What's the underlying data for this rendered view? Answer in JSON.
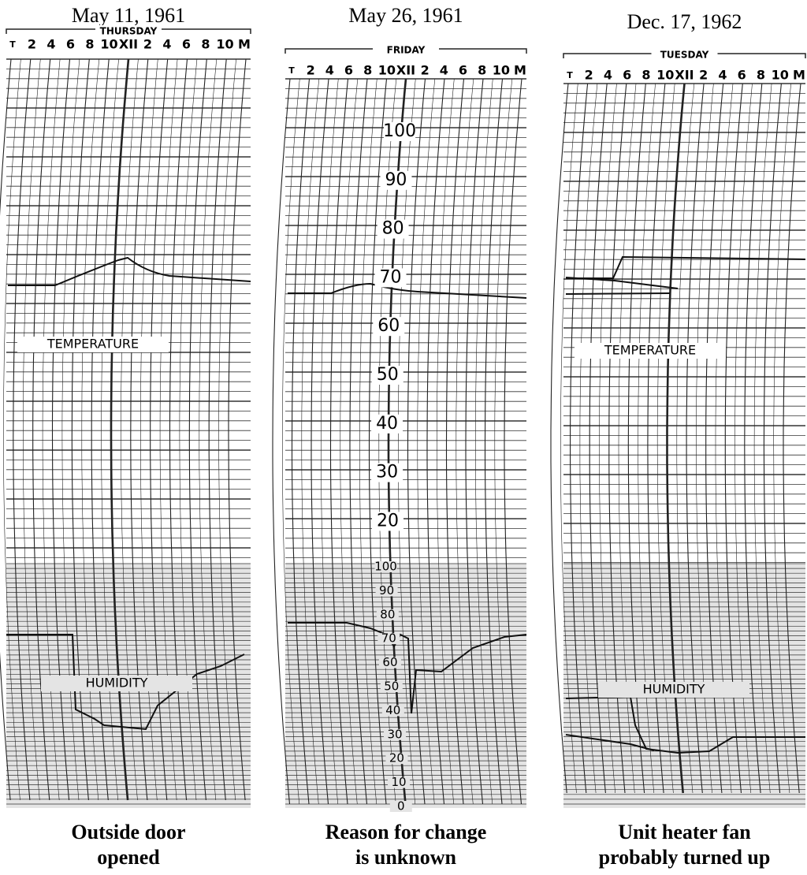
{
  "panels": [
    {
      "date": "May 11, 1961",
      "day": "THURSDAY",
      "hours": [
        "T",
        "2",
        "4",
        "6",
        "8",
        "10",
        "XII",
        "2",
        "4",
        "6",
        "8",
        "10",
        "M"
      ],
      "labels": {
        "temperature": "TEMPERATURE",
        "humidity": "HUMIDITY"
      },
      "caption": [
        "Outside door",
        "opened"
      ]
    },
    {
      "date": "May 26, 1961",
      "day": "FRIDAY",
      "hours": [
        "T",
        "2",
        "4",
        "6",
        "8",
        "10",
        "XII",
        "2",
        "4",
        "6",
        "8",
        "10",
        "M"
      ],
      "scale": {
        "temperature": [
          100,
          90,
          80,
          70,
          60,
          50,
          40,
          30,
          20
        ],
        "humidity": [
          100,
          90,
          80,
          70,
          60,
          50,
          40,
          30,
          20,
          10,
          0
        ]
      },
      "caption": [
        "Reason for change",
        "is unknown"
      ]
    },
    {
      "date": "Dec. 17, 1962",
      "day": "TUESDAY",
      "hours": [
        "T",
        "2",
        "4",
        "6",
        "8",
        "10",
        "XII",
        "2",
        "4",
        "6",
        "8",
        "10",
        "M"
      ],
      "labels": {
        "temperature": "TEMPERATURE",
        "humidity": "HUMIDITY"
      },
      "caption": [
        "Unit heater fan",
        "probably turned up"
      ]
    }
  ]
}
